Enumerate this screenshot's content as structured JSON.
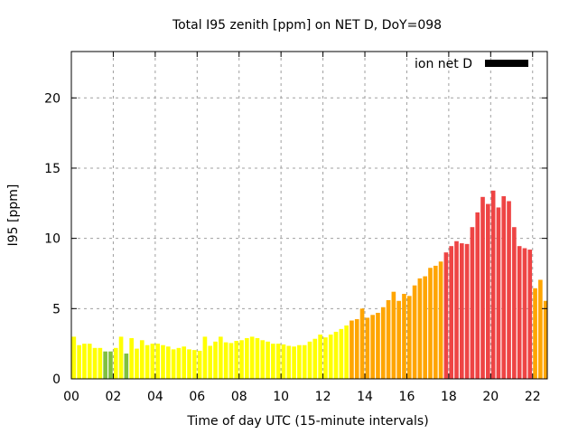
{
  "chart_data": {
    "type": "bar",
    "title": "Total I95 zenith [ppm] on NET D, DoY=098",
    "xlabel": "Time of day UTC (15-minute intervals)",
    "ylabel": "I95 [ppm]",
    "ylim": [
      0,
      23.3
    ],
    "xlim_hours": [
      0,
      22.7
    ],
    "grid": true,
    "legend": {
      "label": "ion net D",
      "position": "top-right",
      "swatch_color": "#000000"
    },
    "x_tick_labels": [
      "00",
      "02",
      "04",
      "06",
      "08",
      "10",
      "12",
      "14",
      "16",
      "18",
      "20",
      "22"
    ],
    "x_tick_hours": [
      0,
      2,
      4,
      6,
      8,
      10,
      12,
      14,
      16,
      18,
      20,
      22
    ],
    "y_tick_labels": [
      "0",
      "5",
      "10",
      "15",
      "20"
    ],
    "y_ticks": [
      0,
      5,
      10,
      15,
      20
    ],
    "interval_minutes": 15,
    "color_thresholds": [
      {
        "max": 2.0,
        "color": "#80c040",
        "level": "low"
      },
      {
        "max": 4.0,
        "color": "#ffff00",
        "level": "normal"
      },
      {
        "max": 9.0,
        "color": "#ffa500",
        "level": "elevated"
      },
      {
        "max": 999,
        "color": "#ee4444",
        "level": "high"
      }
    ],
    "values": [
      3.0,
      2.4,
      2.5,
      2.5,
      2.2,
      2.2,
      1.95,
      1.95,
      2.2,
      3.0,
      1.8,
      2.9,
      2.15,
      2.75,
      2.4,
      2.5,
      2.5,
      2.4,
      2.3,
      2.1,
      2.2,
      2.3,
      2.1,
      2.05,
      2.0,
      3.0,
      2.35,
      2.65,
      3.0,
      2.6,
      2.55,
      2.7,
      2.75,
      2.9,
      3.0,
      2.9,
      2.75,
      2.65,
      2.5,
      2.5,
      2.45,
      2.35,
      2.3,
      2.4,
      2.4,
      2.65,
      2.85,
      3.15,
      2.95,
      3.15,
      3.35,
      3.55,
      3.8,
      4.15,
      4.25,
      5.0,
      4.35,
      4.55,
      4.7,
      5.1,
      5.6,
      6.2,
      5.55,
      6.05,
      5.9,
      6.65,
      7.15,
      7.3,
      7.9,
      8.05,
      8.35,
      9.0,
      9.45,
      9.8,
      9.65,
      9.6,
      10.8,
      11.85,
      12.95,
      12.45,
      13.4,
      12.2,
      13.0,
      12.65,
      10.8,
      9.45,
      9.3,
      9.2,
      6.45,
      7.05,
      5.55,
      7.4
    ]
  }
}
